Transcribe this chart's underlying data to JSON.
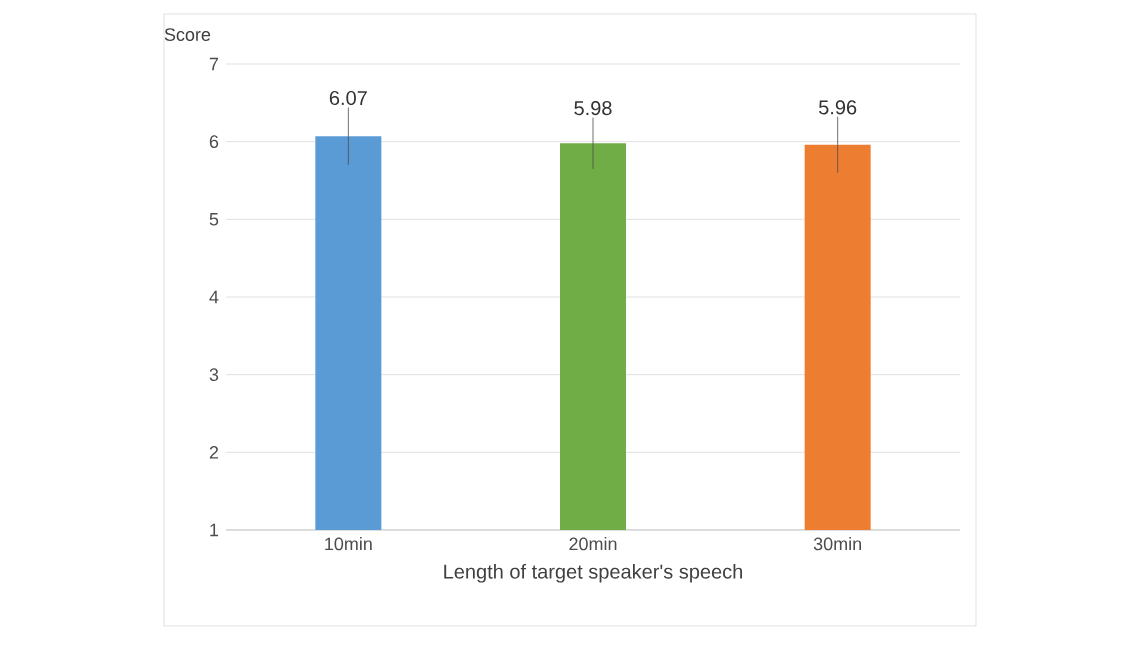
{
  "chart_data": {
    "type": "bar",
    "xlabel": "Length of target speaker's speech",
    "ylabel": "Score",
    "categories": [
      "10min",
      "20min",
      "30min"
    ],
    "values": [
      6.07,
      5.98,
      5.96
    ],
    "colors": [
      "#5b9bd5",
      "#70ad47",
      "#ed7d31"
    ],
    "errors": [
      0.37,
      0.33,
      0.36
    ],
    "ylim": [
      1,
      7
    ],
    "yticks": [
      1,
      2,
      3,
      4,
      5,
      6,
      7
    ],
    "grid": "y",
    "data_labels": true
  }
}
